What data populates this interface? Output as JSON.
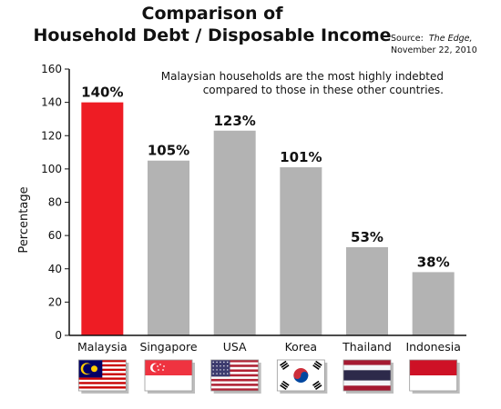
{
  "chart_data": {
    "type": "bar",
    "title_line1": "Comparison of",
    "title_line2": "Household Debt / Disposable Income",
    "source_prefix": "Source:",
    "source_pub": "The Edge,",
    "source_date": "November 22, 2010",
    "annotation_line1": "Malaysian households are the most highly indebted",
    "annotation_line2": "compared to those in these other countries.",
    "ylabel": "Percentage",
    "xlabel": "",
    "ylim": [
      0,
      160
    ],
    "yticks": [
      0,
      20,
      40,
      60,
      80,
      100,
      120,
      140,
      160
    ],
    "categories": [
      "Malaysia",
      "Singapore",
      "USA",
      "Korea",
      "Thailand",
      "Indonesia"
    ],
    "values": [
      140,
      105,
      123,
      101,
      53,
      38
    ],
    "data_labels": [
      "140%",
      "105%",
      "123%",
      "101%",
      "53%",
      "38%"
    ],
    "flags": [
      "malaysia-flag",
      "singapore-flag",
      "usa-flag",
      "korea-flag",
      "thailand-flag",
      "indonesia-flag"
    ],
    "grid": false,
    "colors": {
      "highlight": "#ee1c24",
      "bar": "#b3b3b3",
      "axis": "#111111"
    }
  }
}
